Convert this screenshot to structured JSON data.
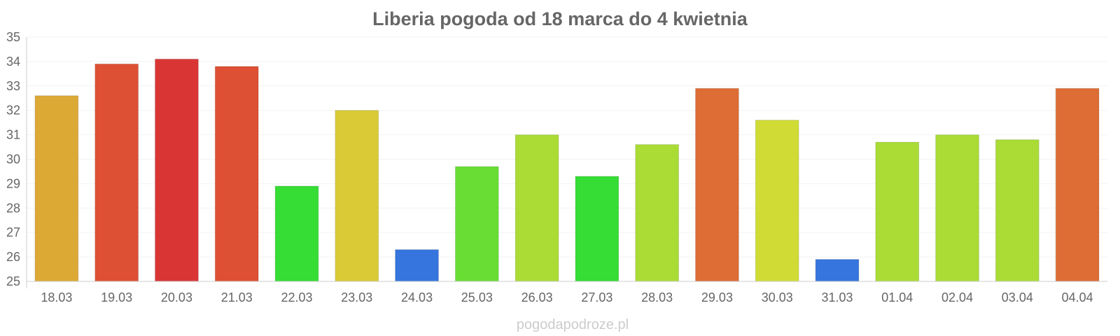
{
  "chart_data": {
    "type": "bar",
    "title": "Liberia pogoda od 18 marca do 4 kwietnia",
    "xlabel": "",
    "ylabel": "",
    "ylim": [
      25,
      35
    ],
    "yticks": [
      25,
      26,
      27,
      28,
      29,
      30,
      31,
      32,
      33,
      34,
      35
    ],
    "grid": true,
    "legend": "none",
    "categories": [
      "18.03",
      "19.03",
      "20.03",
      "21.03",
      "22.03",
      "23.03",
      "24.03",
      "25.03",
      "26.03",
      "27.03",
      "28.03",
      "29.03",
      "30.03",
      "31.03",
      "01.04",
      "02.04",
      "03.04",
      "04.04"
    ],
    "values": [
      32.6,
      33.9,
      34.1,
      33.8,
      28.9,
      32.0,
      26.3,
      29.7,
      31.0,
      29.3,
      30.6,
      32.9,
      31.6,
      25.9,
      30.7,
      31.0,
      30.8,
      32.9
    ],
    "colors": [
      "#dda935",
      "#dd5034",
      "#da3535",
      "#dd5034",
      "#35dd35",
      "#daca35",
      "#3575dd",
      "#6add35",
      "#aadc35",
      "#35dd35",
      "#aadc35",
      "#dd6d35",
      "#d0dc35",
      "#3575dd",
      "#aadc35",
      "#aadc35",
      "#aadc35",
      "#dd6d35"
    ]
  },
  "watermark": "pogodapodroze.pl"
}
